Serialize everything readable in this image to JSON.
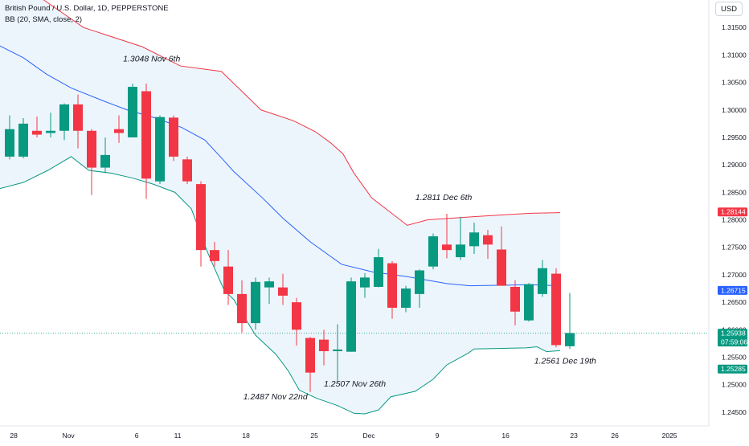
{
  "header": {
    "symbol_title": "British Pound / U.S. Dollar, 1D, PEPPERSTONE",
    "indicator_label": "BB (20, SMA, close, 2)",
    "currency": "USD"
  },
  "colors": {
    "up": "#089981",
    "down": "#f23645",
    "upper_band": "#f23645",
    "middle_band": "#2962ff",
    "lower_band": "#089981",
    "band_fill": "#eaf3fb"
  },
  "chart_data": {
    "type": "candlestick",
    "y_axis_ticks": [
      "1.31500",
      "1.31000",
      "1.30500",
      "1.30000",
      "1.29500",
      "1.29000",
      "1.28500",
      "1.28000",
      "1.27500",
      "1.27000",
      "1.26500",
      "1.26000",
      "1.25500",
      "1.25000",
      "1.24500"
    ],
    "ylim": [
      1.2425,
      1.32
    ],
    "x_axis_labels": [
      {
        "label": "28",
        "x": 0.3
      },
      {
        "label": "Nov",
        "x": 4.3
      },
      {
        "label": "6",
        "x": 9.3
      },
      {
        "label": "11",
        "x": 12.3
      },
      {
        "label": "18",
        "x": 17.3
      },
      {
        "label": "25",
        "x": 22.3
      },
      {
        "label": "Dec",
        "x": 26.3
      },
      {
        "label": "9",
        "x": 31.3
      },
      {
        "label": "16",
        "x": 36.3
      },
      {
        "label": "23",
        "x": 41.3
      },
      {
        "label": "26",
        "x": 44.3
      },
      {
        "label": "2025",
        "x": 48.3
      }
    ],
    "candles": [
      {
        "o": 1.2915,
        "h": 1.299,
        "l": 1.291,
        "c": 1.2965
      },
      {
        "o": 1.2915,
        "h": 1.2985,
        "l": 1.2912,
        "c": 1.2975
      },
      {
        "o": 1.2962,
        "h": 1.2988,
        "l": 1.295,
        "c": 1.2955
      },
      {
        "o": 1.2958,
        "h": 1.2995,
        "l": 1.295,
        "c": 1.2962
      },
      {
        "o": 1.2962,
        "h": 1.3012,
        "l": 1.2945,
        "c": 1.301
      },
      {
        "o": 1.301,
        "h": 1.3028,
        "l": 1.293,
        "c": 1.2962
      },
      {
        "o": 1.2962,
        "h": 1.2965,
        "l": 1.2845,
        "c": 1.2895
      },
      {
        "o": 1.2895,
        "h": 1.295,
        "l": 1.2885,
        "c": 1.2918
      },
      {
        "o": 1.2965,
        "h": 1.299,
        "l": 1.294,
        "c": 1.2958
      },
      {
        "o": 1.295,
        "h": 1.3048,
        "l": 1.295,
        "c": 1.3042
      },
      {
        "o": 1.3034,
        "h": 1.3048,
        "l": 1.2838,
        "c": 1.2875
      },
      {
        "o": 1.287,
        "h": 1.299,
        "l": 1.2865,
        "c": 1.2987
      },
      {
        "o": 1.2986,
        "h": 1.299,
        "l": 1.2907,
        "c": 1.2915
      },
      {
        "o": 1.291,
        "h": 1.2915,
        "l": 1.2865,
        "c": 1.287
      },
      {
        "o": 1.2865,
        "h": 1.287,
        "l": 1.2715,
        "c": 1.2745
      },
      {
        "o": 1.2745,
        "h": 1.276,
        "l": 1.2715,
        "c": 1.2725
      },
      {
        "o": 1.2715,
        "h": 1.2745,
        "l": 1.2645,
        "c": 1.2665
      },
      {
        "o": 1.2665,
        "h": 1.269,
        "l": 1.2595,
        "c": 1.2612
      },
      {
        "o": 1.2612,
        "h": 1.2695,
        "l": 1.26,
        "c": 1.2687
      },
      {
        "o": 1.2677,
        "h": 1.2695,
        "l": 1.2647,
        "c": 1.2688
      },
      {
        "o": 1.2677,
        "h": 1.2702,
        "l": 1.2645,
        "c": 1.2662
      },
      {
        "o": 1.265,
        "h": 1.2658,
        "l": 1.2571,
        "c": 1.26
      },
      {
        "o": 1.2585,
        "h": 1.2587,
        "l": 1.2487,
        "c": 1.2522
      },
      {
        "o": 1.2582,
        "h": 1.26,
        "l": 1.2535,
        "c": 1.2561
      },
      {
        "o": 1.2561,
        "h": 1.261,
        "l": 1.2507,
        "c": 1.2564
      },
      {
        "o": 1.256,
        "h": 1.2695,
        "l": 1.256,
        "c": 1.2688
      },
      {
        "o": 1.2677,
        "h": 1.2703,
        "l": 1.2658,
        "c": 1.2695
      },
      {
        "o": 1.2678,
        "h": 1.2747,
        "l": 1.2677,
        "c": 1.2732
      },
      {
        "o": 1.2721,
        "h": 1.2725,
        "l": 1.262,
        "c": 1.264
      },
      {
        "o": 1.264,
        "h": 1.268,
        "l": 1.2632,
        "c": 1.2675
      },
      {
        "o": 1.2665,
        "h": 1.271,
        "l": 1.264,
        "c": 1.2708
      },
      {
        "o": 1.2715,
        "h": 1.2775,
        "l": 1.271,
        "c": 1.277
      },
      {
        "o": 1.2755,
        "h": 1.2811,
        "l": 1.273,
        "c": 1.2745
      },
      {
        "o": 1.2732,
        "h": 1.2805,
        "l": 1.2727,
        "c": 1.2755
      },
      {
        "o": 1.2752,
        "h": 1.2795,
        "l": 1.2738,
        "c": 1.2777
      },
      {
        "o": 1.2772,
        "h": 1.2782,
        "l": 1.2729,
        "c": 1.2755
      },
      {
        "o": 1.2746,
        "h": 1.2788,
        "l": 1.2682,
        "c": 1.268
      },
      {
        "o": 1.2678,
        "h": 1.269,
        "l": 1.2608,
        "c": 1.2633
      },
      {
        "o": 1.2617,
        "h": 1.2685,
        "l": 1.2615,
        "c": 1.2683
      },
      {
        "o": 1.2665,
        "h": 1.2727,
        "l": 1.266,
        "c": 1.2712
      },
      {
        "o": 1.2702,
        "h": 1.2712,
        "l": 1.2568,
        "c": 1.2572
      },
      {
        "o": 1.257,
        "h": 1.2667,
        "l": 1.2565,
        "c": 1.2594
      }
    ],
    "bollinger": {
      "upper": [
        [
          -1,
          1.325
        ],
        [
          2.5,
          1.32
        ],
        [
          5.4,
          1.315
        ],
        [
          9.7,
          1.3115
        ],
        [
          12.5,
          1.308
        ],
        [
          15.5,
          1.307
        ],
        [
          18.4,
          1.3
        ],
        [
          20.8,
          1.298
        ],
        [
          22.4,
          1.296
        ],
        [
          23.5,
          1.294
        ],
        [
          24.4,
          1.292
        ],
        [
          25.2,
          1.2885
        ],
        [
          26.5,
          1.284
        ],
        [
          27.8,
          1.2815
        ],
        [
          29.1,
          1.279
        ],
        [
          30.6,
          1.28
        ],
        [
          34.1,
          1.2806
        ],
        [
          38.1,
          1.2812
        ],
        [
          40.3,
          1.2813
        ]
      ],
      "middle": [
        [
          -1,
          1.312
        ],
        [
          1,
          1.3095
        ],
        [
          2.7,
          1.3065
        ],
        [
          4.5,
          1.304
        ],
        [
          7,
          1.3015
        ],
        [
          8.6,
          1.3
        ],
        [
          10.7,
          1.2985
        ],
        [
          12.6,
          1.2968
        ],
        [
          14.3,
          1.2945
        ],
        [
          15.6,
          1.291
        ],
        [
          16.4,
          1.2888
        ],
        [
          18.5,
          1.284
        ],
        [
          20,
          1.2803
        ],
        [
          22,
          1.276
        ],
        [
          24.3,
          1.2719
        ],
        [
          26.6,
          1.2705
        ],
        [
          29,
          1.2697
        ],
        [
          30.4,
          1.2691
        ],
        [
          32,
          1.2684
        ],
        [
          33.7,
          1.268
        ],
        [
          36.1,
          1.2681
        ],
        [
          38.1,
          1.2682
        ],
        [
          40.3,
          1.268
        ]
      ],
      "lower": [
        [
          -1,
          1.2855
        ],
        [
          1,
          1.2868
        ],
        [
          2.8,
          1.289
        ],
        [
          4.5,
          1.2915
        ],
        [
          5.8,
          1.289
        ],
        [
          7.4,
          1.2885
        ],
        [
          9,
          1.2876
        ],
        [
          10.5,
          1.2865
        ],
        [
          12.1,
          1.285
        ],
        [
          13.3,
          1.282
        ],
        [
          14.5,
          1.274
        ],
        [
          15.7,
          1.2672
        ],
        [
          16.4,
          1.2655
        ],
        [
          17,
          1.263
        ],
        [
          18,
          1.259
        ],
        [
          19.5,
          1.2555
        ],
        [
          20.4,
          1.2525
        ],
        [
          21.2,
          1.249
        ],
        [
          22.5,
          1.2475
        ],
        [
          24,
          1.2462
        ],
        [
          25.2,
          1.2448
        ],
        [
          26,
          1.2447
        ],
        [
          27,
          1.2454
        ],
        [
          27.9,
          1.2478
        ],
        [
          29.7,
          1.2488
        ],
        [
          31,
          1.251
        ],
        [
          32,
          1.2536
        ],
        [
          33.6,
          1.2558
        ],
        [
          34,
          1.2565
        ],
        [
          35.7,
          1.2566
        ],
        [
          37.8,
          1.2567
        ],
        [
          38.6,
          1.2569
        ],
        [
          39.3,
          1.256
        ],
        [
          40.3,
          1.2562
        ]
      ]
    },
    "price_labels": [
      {
        "value": 1.28144,
        "text": "1.28144",
        "color": "#f23645"
      },
      {
        "value": 1.26715,
        "text": "1.26715",
        "color": "#2962ff"
      },
      {
        "value": 1.25938,
        "text": "1.25938",
        "countdown": "07:59:06",
        "color": "#089981"
      },
      {
        "value": 1.25285,
        "text": "1.25285",
        "color": "#089981"
      }
    ],
    "annotations": [
      {
        "text": "1.3048 Nov 6th",
        "x": 8.3,
        "y": 1.3088
      },
      {
        "text": "1.2811 Dec 6th",
        "x": 29.7,
        "y": 1.2836
      },
      {
        "text": "1.2561 Dec 19th",
        "x": 38.4,
        "y": 1.2538
      },
      {
        "text": "1.2507 Nov 26th",
        "x": 23.0,
        "y": 1.2497
      },
      {
        "text": "1.2487 Nov 22nd",
        "x": 17.1,
        "y": 1.2473
      }
    ]
  }
}
